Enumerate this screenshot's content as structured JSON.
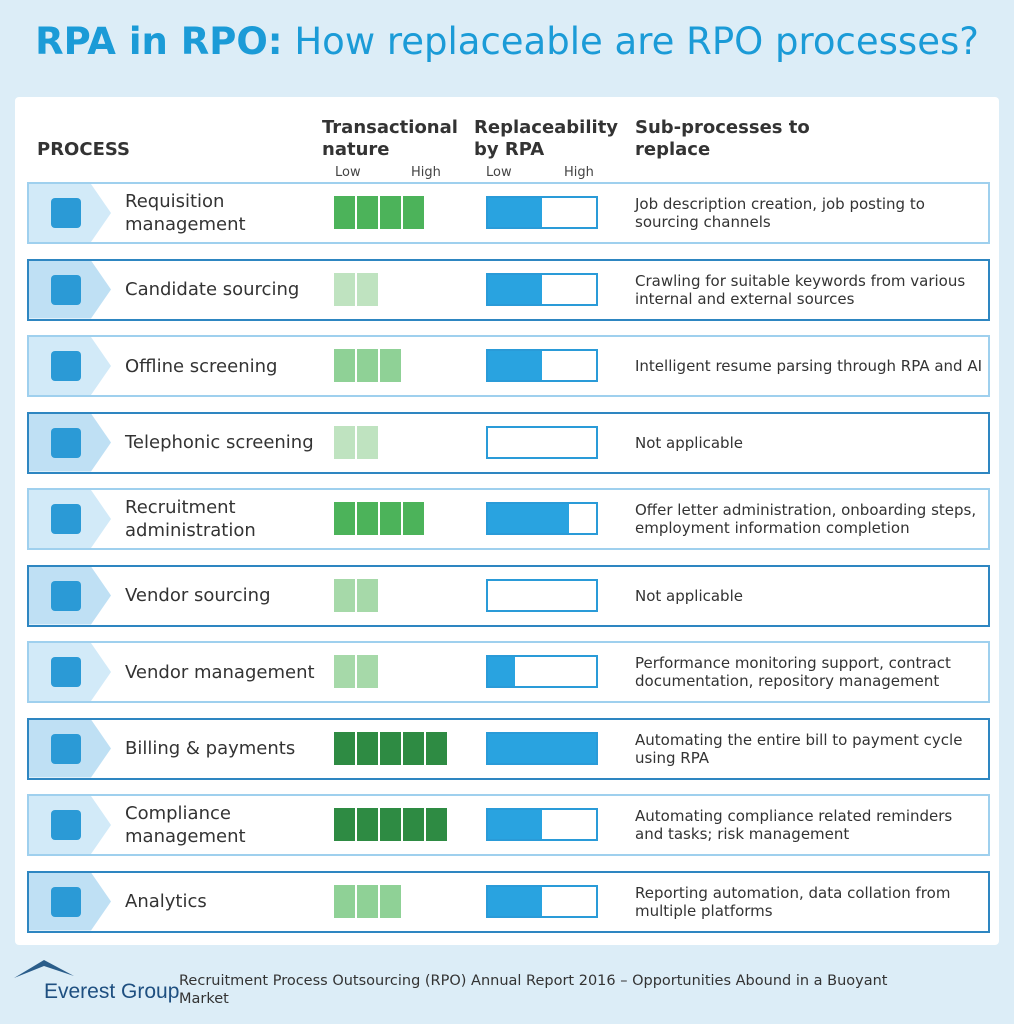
{
  "title": {
    "bold": "RPA in RPO:",
    "rest": "How replaceable are RPO processes?"
  },
  "headers": {
    "process": "PROCESS",
    "transactional": "Transactional nature",
    "replaceability": "Replaceability by RPA",
    "subprocesses": "Sub-processes to replace",
    "low": "Low",
    "high": "High"
  },
  "replaceability_color": "#29a3e0",
  "rows": [
    {
      "process": "Requisition management",
      "transactional": 4,
      "transactional_color": "#4cb35a",
      "replaceability": 0.5,
      "subprocesses": "Job description creation, job posting to sourcing channels"
    },
    {
      "process": "Candidate sourcing",
      "transactional": 2,
      "transactional_color": "#bfe3c0",
      "replaceability": 0.5,
      "subprocesses": "Crawling for suitable keywords from various internal and external sources"
    },
    {
      "process": "Offline screening",
      "transactional": 3,
      "transactional_color": "#8fd196",
      "replaceability": 0.5,
      "subprocesses": "Intelligent resume parsing through RPA and AI"
    },
    {
      "process": "Telephonic screening",
      "transactional": 2,
      "transactional_color": "#bfe3c0",
      "replaceability": 0,
      "subprocesses": "Not applicable"
    },
    {
      "process": "Recruitment administration",
      "transactional": 4,
      "transactional_color": "#4cb35a",
      "replaceability": 0.75,
      "subprocesses": "Offer letter administration, onboarding steps, employment information completion"
    },
    {
      "process": "Vendor sourcing",
      "transactional": 2,
      "transactional_color": "#a6d9a9",
      "replaceability": 0,
      "subprocesses": "Not applicable"
    },
    {
      "process": "Vendor management",
      "transactional": 2,
      "transactional_color": "#a6d9a9",
      "replaceability": 0.25,
      "subprocesses": "Performance monitoring support, contract documentation, repository management"
    },
    {
      "process": "Billing & payments",
      "transactional": 5,
      "transactional_color": "#2e8b43",
      "replaceability": 1,
      "subprocesses": "Automating the entire bill to payment cycle using RPA"
    },
    {
      "process": "Compliance management",
      "transactional": 5,
      "transactional_color": "#2e8b43",
      "replaceability": 0.5,
      "subprocesses": "Automating compliance related reminders and tasks; risk management"
    },
    {
      "process": "Analytics",
      "transactional": 3,
      "transactional_color": "#8fd196",
      "replaceability": 0.5,
      "subprocesses": "Reporting automation, data collation from multiple platforms"
    }
  ],
  "footer": {
    "logo": "Everest Group",
    "source": "Recruitment Process Outsourcing (RPO) Annual Report 2016 – Opportunities Abound in a Buoyant Market"
  }
}
